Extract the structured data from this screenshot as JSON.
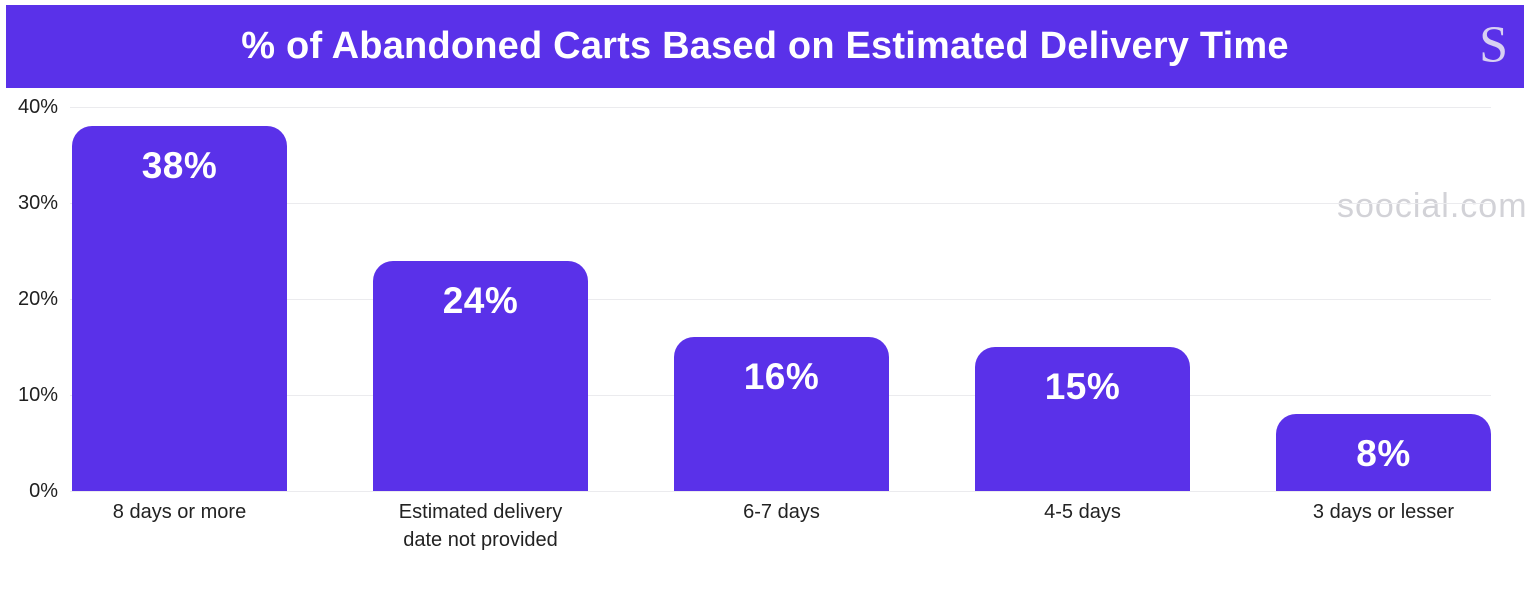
{
  "header": {
    "title": "% of Abandoned Carts Based on Estimated Delivery Time",
    "logo_glyph": "S"
  },
  "watermark": "soocial.com",
  "colors": {
    "accent": "#5a31e9",
    "bar": "#5a31e9",
    "value_label": "#ffffff",
    "grid": "#ebebee",
    "axis_text": "#1f1f1f",
    "watermark": "#d2d2d7",
    "logo": "#d8d0f2"
  },
  "chart_data": {
    "type": "bar",
    "title": "% of Abandoned Carts Based on Estimated Delivery Time",
    "categories": [
      "8 days or more",
      "Estimated delivery date not provided",
      "6-7 days",
      "4-5 days",
      "3 days or lesser"
    ],
    "xtick_display": [
      "8 days or more",
      "Estimated delivery\ndate not provided",
      "6-7 days",
      "4-5 days",
      "3 days or lesser"
    ],
    "values": [
      38,
      24,
      16,
      15,
      8
    ],
    "value_labels": [
      "38%",
      "24%",
      "16%",
      "15%",
      "8%"
    ],
    "xlabel": "",
    "ylabel": "",
    "ylim": [
      0,
      40
    ],
    "yticks": [
      0,
      10,
      20,
      30,
      40
    ],
    "ytick_labels": [
      "0%",
      "10%",
      "20%",
      "30%",
      "40%"
    ],
    "grid": true,
    "legend": false,
    "bar_color": "#5a31e9"
  }
}
